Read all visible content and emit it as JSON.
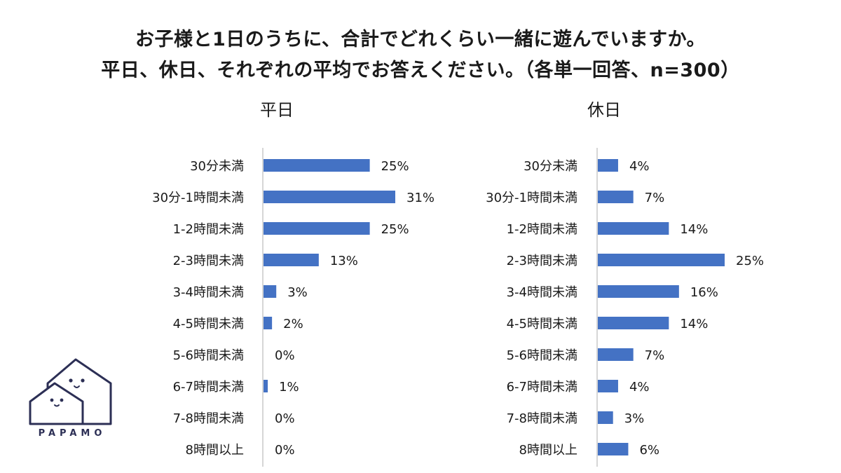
{
  "title_line1": "お子様と1日のうちに、合計でどれくらい一緒に遊んでいますか。",
  "title_line2": "平日、休日、それぞれの平均でお答えください。（各単一回答、n=300）",
  "logo_text": "PAPAMO",
  "colors": {
    "bar": "#4472C4",
    "axis": "#c8c8c8",
    "logo": "#2c2f55"
  },
  "chart_data": [
    {
      "type": "bar",
      "orientation": "horizontal",
      "title": "平日",
      "categories": [
        "30分未満",
        "30分-1時間未満",
        "1-2時間未満",
        "2-3時間未満",
        "3-4時間未満",
        "4-5時間未満",
        "5-6時間未満",
        "6-7時間未満",
        "7-8時間未満",
        "8時間以上"
      ],
      "values": [
        25,
        31,
        25,
        13,
        3,
        2,
        0,
        1,
        0,
        0
      ],
      "value_labels": [
        "25%",
        "31%",
        "25%",
        "13%",
        "3%",
        "2%",
        "0%",
        "1%",
        "0%",
        "0%"
      ],
      "unit": "%",
      "xlim": [
        0,
        31
      ],
      "grid": false
    },
    {
      "type": "bar",
      "orientation": "horizontal",
      "title": "休日",
      "categories": [
        "30分未満",
        "30分-1時間未満",
        "1-2時間未満",
        "2-3時間未満",
        "3-4時間未満",
        "4-5時間未満",
        "5-6時間未満",
        "6-7時間未満",
        "7-8時間未満",
        "8時間以上"
      ],
      "values": [
        4,
        7,
        14,
        25,
        16,
        14,
        7,
        4,
        3,
        6
      ],
      "value_labels": [
        "4%",
        "7%",
        "14%",
        "25%",
        "16%",
        "14%",
        "7%",
        "4%",
        "3%",
        "6%"
      ],
      "unit": "%",
      "xlim": [
        0,
        25
      ],
      "grid": false
    }
  ]
}
